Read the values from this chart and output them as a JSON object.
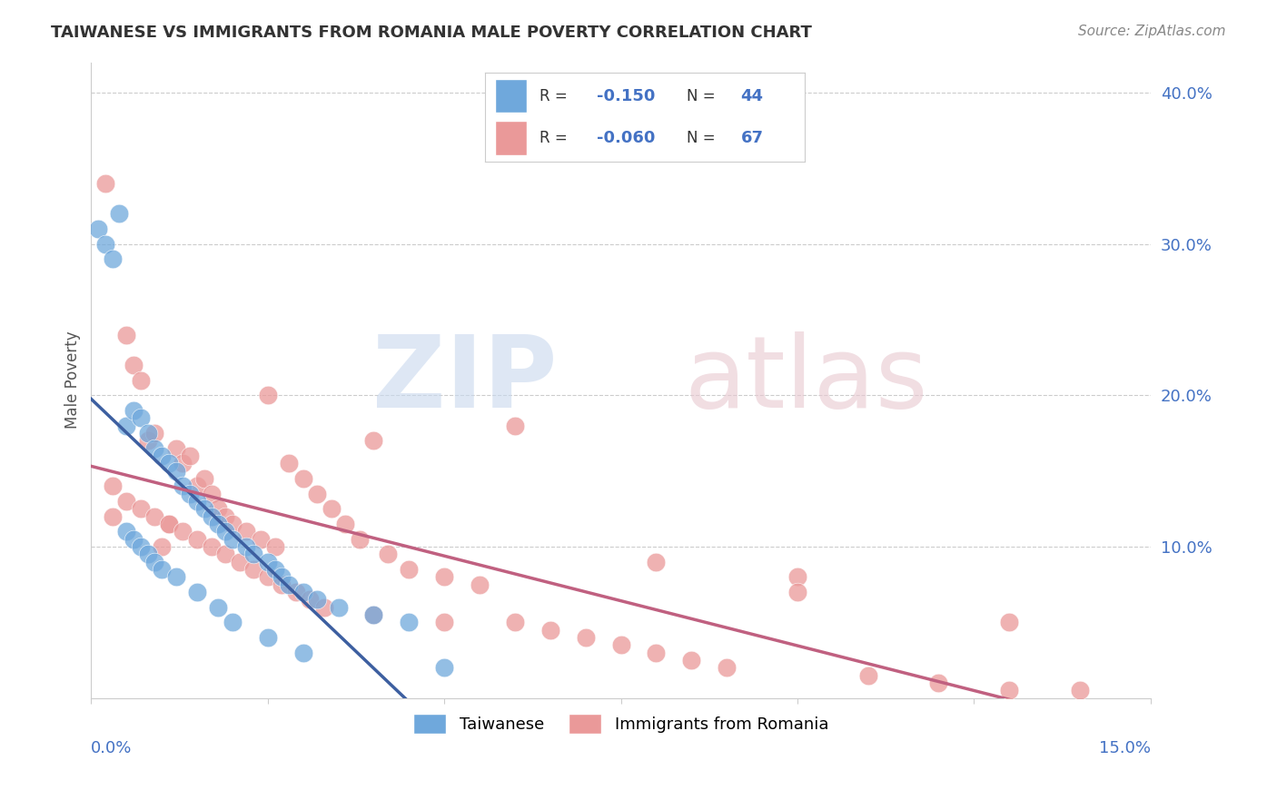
{
  "title": "TAIWANESE VS IMMIGRANTS FROM ROMANIA MALE POVERTY CORRELATION CHART",
  "source": "Source: ZipAtlas.com",
  "ylabel": "Male Poverty",
  "right_yticks": [
    "40.0%",
    "30.0%",
    "20.0%",
    "10.0%"
  ],
  "right_ytick_vals": [
    0.4,
    0.3,
    0.2,
    0.1
  ],
  "xlim": [
    0.0,
    0.15
  ],
  "ylim": [
    0.0,
    0.42
  ],
  "taiwanese_R": -0.15,
  "taiwanese_N": 44,
  "romanian_R": -0.06,
  "romanian_N": 67,
  "taiwanese_color": "#6fa8dc",
  "romanian_color": "#ea9999",
  "taiwanese_line_color": "#3d5fa0",
  "romanian_line_color": "#c06080",
  "taiwanese_x": [
    0.001,
    0.002,
    0.003,
    0.004,
    0.005,
    0.006,
    0.007,
    0.008,
    0.009,
    0.01,
    0.011,
    0.012,
    0.013,
    0.014,
    0.015,
    0.016,
    0.017,
    0.018,
    0.019,
    0.02,
    0.022,
    0.023,
    0.025,
    0.026,
    0.027,
    0.028,
    0.03,
    0.032,
    0.035,
    0.04,
    0.045,
    0.005,
    0.006,
    0.007,
    0.008,
    0.009,
    0.01,
    0.012,
    0.015,
    0.018,
    0.02,
    0.025,
    0.03,
    0.05
  ],
  "taiwanese_y": [
    0.31,
    0.3,
    0.29,
    0.32,
    0.18,
    0.19,
    0.185,
    0.175,
    0.165,
    0.16,
    0.155,
    0.15,
    0.14,
    0.135,
    0.13,
    0.125,
    0.12,
    0.115,
    0.11,
    0.105,
    0.1,
    0.095,
    0.09,
    0.085,
    0.08,
    0.075,
    0.07,
    0.065,
    0.06,
    0.055,
    0.05,
    0.11,
    0.105,
    0.1,
    0.095,
    0.09,
    0.085,
    0.08,
    0.07,
    0.06,
    0.05,
    0.04,
    0.03,
    0.02
  ],
  "romanian_x": [
    0.002,
    0.003,
    0.005,
    0.006,
    0.007,
    0.008,
    0.009,
    0.01,
    0.011,
    0.012,
    0.013,
    0.014,
    0.015,
    0.016,
    0.017,
    0.018,
    0.019,
    0.02,
    0.022,
    0.024,
    0.025,
    0.026,
    0.028,
    0.03,
    0.032,
    0.034,
    0.036,
    0.038,
    0.04,
    0.042,
    0.045,
    0.05,
    0.055,
    0.06,
    0.065,
    0.07,
    0.075,
    0.08,
    0.085,
    0.09,
    0.1,
    0.11,
    0.12,
    0.13,
    0.14,
    0.003,
    0.005,
    0.007,
    0.009,
    0.011,
    0.013,
    0.015,
    0.017,
    0.019,
    0.021,
    0.023,
    0.025,
    0.027,
    0.029,
    0.031,
    0.033,
    0.04,
    0.05,
    0.06,
    0.08,
    0.1,
    0.13
  ],
  "romanian_y": [
    0.34,
    0.12,
    0.24,
    0.22,
    0.21,
    0.17,
    0.175,
    0.1,
    0.115,
    0.165,
    0.155,
    0.16,
    0.14,
    0.145,
    0.135,
    0.125,
    0.12,
    0.115,
    0.11,
    0.105,
    0.2,
    0.1,
    0.155,
    0.145,
    0.135,
    0.125,
    0.115,
    0.105,
    0.17,
    0.095,
    0.085,
    0.08,
    0.075,
    0.05,
    0.045,
    0.04,
    0.035,
    0.03,
    0.025,
    0.02,
    0.08,
    0.015,
    0.01,
    0.005,
    0.005,
    0.14,
    0.13,
    0.125,
    0.12,
    0.115,
    0.11,
    0.105,
    0.1,
    0.095,
    0.09,
    0.085,
    0.08,
    0.075,
    0.07,
    0.065,
    0.06,
    0.055,
    0.05,
    0.18,
    0.09,
    0.07,
    0.05
  ]
}
